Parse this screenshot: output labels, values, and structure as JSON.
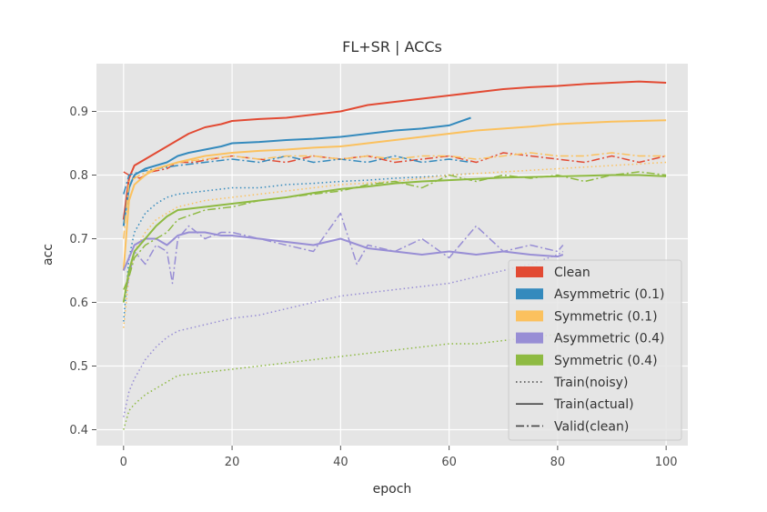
{
  "chart_data": {
    "type": "line",
    "title": "FL+SR | ACCs",
    "xlabel": "epoch",
    "ylabel": "acc",
    "xlim": [
      -5,
      104
    ],
    "ylim": [
      0.375,
      0.975
    ],
    "xticks": [
      0,
      20,
      40,
      60,
      80,
      100
    ],
    "yticks": [
      0.4,
      0.5,
      0.6,
      0.7,
      0.8,
      0.9
    ],
    "grid": true,
    "legend_position": "lower-right",
    "legend": [
      {
        "label": "Clean",
        "kind": "patch",
        "color": "#E24A33"
      },
      {
        "label": "Asymmetric (0.1)",
        "kind": "patch",
        "color": "#348ABD"
      },
      {
        "label": "Symmetric (0.1)",
        "kind": "patch",
        "color": "#FBC15E"
      },
      {
        "label": "Asymmetric (0.4)",
        "kind": "patch",
        "color": "#988ED5"
      },
      {
        "label": "Symmetric (0.4)",
        "kind": "patch",
        "color": "#8EBA42"
      },
      {
        "label": "Train(noisy)",
        "kind": "line",
        "style": "dotted",
        "color": "#444444"
      },
      {
        "label": "Train(actual)",
        "kind": "line",
        "style": "solid",
        "color": "#444444"
      },
      {
        "label": "Valid(clean)",
        "kind": "line",
        "style": "dashdot",
        "color": "#444444"
      }
    ],
    "series": [
      {
        "name": "Clean",
        "style": "solid",
        "color": "#E24A33",
        "x": [
          0,
          1,
          2,
          4,
          6,
          8,
          10,
          12,
          15,
          18,
          20,
          25,
          30,
          35,
          40,
          45,
          50,
          55,
          60,
          65,
          70,
          75,
          80,
          85,
          90,
          95,
          100
        ],
        "y": [
          0.73,
          0.795,
          0.815,
          0.825,
          0.835,
          0.845,
          0.855,
          0.865,
          0.875,
          0.88,
          0.885,
          0.888,
          0.89,
          0.895,
          0.9,
          0.91,
          0.915,
          0.92,
          0.925,
          0.93,
          0.935,
          0.938,
          0.94,
          0.943,
          0.945,
          0.947,
          0.945
        ]
      },
      {
        "name": "Clean",
        "style": "dashdot",
        "color": "#E24A33",
        "x": [
          0,
          1,
          3,
          5,
          8,
          10,
          13,
          16,
          20,
          25,
          30,
          35,
          40,
          45,
          50,
          55,
          60,
          65,
          70,
          75,
          80,
          85,
          90,
          95,
          100
        ],
        "y": [
          0.805,
          0.8,
          0.795,
          0.805,
          0.81,
          0.82,
          0.82,
          0.825,
          0.83,
          0.825,
          0.82,
          0.83,
          0.825,
          0.83,
          0.82,
          0.825,
          0.83,
          0.82,
          0.835,
          0.83,
          0.825,
          0.82,
          0.83,
          0.82,
          0.83
        ]
      },
      {
        "name": "Asymmetric (0.1)",
        "style": "solid",
        "color": "#348ABD",
        "x": [
          0,
          1,
          2,
          4,
          6,
          8,
          10,
          12,
          15,
          18,
          20,
          25,
          30,
          35,
          40,
          45,
          50,
          55,
          60,
          64
        ],
        "y": [
          0.72,
          0.78,
          0.8,
          0.81,
          0.815,
          0.82,
          0.83,
          0.835,
          0.84,
          0.845,
          0.85,
          0.852,
          0.855,
          0.857,
          0.86,
          0.865,
          0.87,
          0.873,
          0.878,
          0.89
        ]
      },
      {
        "name": "Asymmetric (0.1)",
        "style": "dashdot",
        "color": "#348ABD",
        "x": [
          0,
          1,
          3,
          6,
          10,
          15,
          20,
          25,
          30,
          35,
          40,
          45,
          50,
          55,
          60,
          64
        ],
        "y": [
          0.77,
          0.8,
          0.805,
          0.81,
          0.815,
          0.82,
          0.825,
          0.82,
          0.83,
          0.82,
          0.825,
          0.82,
          0.83,
          0.82,
          0.825,
          0.82
        ]
      },
      {
        "name": "Asymmetric (0.1)",
        "style": "dotted",
        "color": "#348ABD",
        "x": [
          0,
          1,
          2,
          4,
          6,
          8,
          10,
          15,
          20,
          25,
          30,
          35,
          40,
          45,
          50,
          55,
          60,
          64
        ],
        "y": [
          0.57,
          0.67,
          0.71,
          0.74,
          0.755,
          0.765,
          0.77,
          0.775,
          0.78,
          0.78,
          0.785,
          0.787,
          0.79,
          0.792,
          0.795,
          0.797,
          0.8,
          0.802
        ]
      },
      {
        "name": "Symmetric (0.1)",
        "style": "solid",
        "color": "#FBC15E",
        "x": [
          0,
          1,
          2,
          4,
          6,
          8,
          10,
          15,
          20,
          25,
          30,
          35,
          40,
          45,
          50,
          55,
          60,
          65,
          70,
          75,
          80,
          85,
          90,
          95,
          100
        ],
        "y": [
          0.65,
          0.76,
          0.785,
          0.8,
          0.81,
          0.815,
          0.82,
          0.83,
          0.835,
          0.838,
          0.84,
          0.843,
          0.845,
          0.85,
          0.855,
          0.86,
          0.865,
          0.87,
          0.873,
          0.876,
          0.88,
          0.882,
          0.884,
          0.885,
          0.886
        ]
      },
      {
        "name": "Symmetric (0.1)",
        "style": "dashdot",
        "color": "#FBC15E",
        "x": [
          0,
          1,
          3,
          6,
          10,
          15,
          20,
          25,
          30,
          35,
          40,
          45,
          50,
          55,
          60,
          65,
          70,
          75,
          80,
          85,
          90,
          95,
          100
        ],
        "y": [
          0.7,
          0.79,
          0.8,
          0.81,
          0.82,
          0.825,
          0.83,
          0.825,
          0.83,
          0.83,
          0.825,
          0.83,
          0.825,
          0.83,
          0.83,
          0.825,
          0.83,
          0.835,
          0.83,
          0.83,
          0.835,
          0.83,
          0.83
        ]
      },
      {
        "name": "Symmetric (0.1)",
        "style": "dotted",
        "color": "#FBC15E",
        "x": [
          0,
          1,
          2,
          4,
          6,
          8,
          10,
          15,
          20,
          25,
          30,
          40,
          50,
          60,
          70,
          80,
          90,
          100
        ],
        "y": [
          0.56,
          0.64,
          0.68,
          0.71,
          0.73,
          0.74,
          0.75,
          0.76,
          0.765,
          0.77,
          0.775,
          0.785,
          0.79,
          0.8,
          0.805,
          0.81,
          0.815,
          0.82
        ]
      },
      {
        "name": "Asymmetric (0.4)",
        "style": "solid",
        "color": "#988ED5",
        "x": [
          0,
          1,
          2,
          4,
          6,
          8,
          10,
          12,
          15,
          18,
          20,
          25,
          30,
          35,
          40,
          45,
          50,
          55,
          60,
          65,
          70,
          75,
          80,
          81
        ],
        "y": [
          0.65,
          0.67,
          0.69,
          0.7,
          0.7,
          0.69,
          0.705,
          0.71,
          0.71,
          0.705,
          0.705,
          0.7,
          0.695,
          0.69,
          0.7,
          0.685,
          0.68,
          0.675,
          0.68,
          0.675,
          0.68,
          0.675,
          0.672,
          0.675
        ]
      },
      {
        "name": "Asymmetric (0.4)",
        "style": "dashdot",
        "color": "#988ED5",
        "x": [
          0,
          1,
          2,
          4,
          6,
          8,
          9,
          10,
          12,
          15,
          18,
          20,
          25,
          30,
          35,
          40,
          43,
          45,
          50,
          55,
          60,
          65,
          70,
          75,
          80,
          81
        ],
        "y": [
          0.6,
          0.64,
          0.68,
          0.66,
          0.69,
          0.68,
          0.63,
          0.7,
          0.72,
          0.7,
          0.71,
          0.71,
          0.7,
          0.69,
          0.68,
          0.74,
          0.66,
          0.69,
          0.68,
          0.7,
          0.67,
          0.72,
          0.68,
          0.69,
          0.68,
          0.69
        ]
      },
      {
        "name": "Asymmetric (0.4)",
        "style": "dotted",
        "color": "#988ED5",
        "x": [
          0,
          1,
          2,
          4,
          6,
          8,
          10,
          15,
          20,
          25,
          30,
          35,
          40,
          45,
          50,
          55,
          60,
          65,
          70,
          75,
          80,
          81
        ],
        "y": [
          0.42,
          0.46,
          0.48,
          0.51,
          0.53,
          0.545,
          0.555,
          0.565,
          0.575,
          0.58,
          0.59,
          0.6,
          0.61,
          0.615,
          0.62,
          0.625,
          0.63,
          0.64,
          0.65,
          0.66,
          0.675,
          0.68
        ]
      },
      {
        "name": "Symmetric (0.4)",
        "style": "solid",
        "color": "#8EBA42",
        "x": [
          0,
          1,
          2,
          4,
          6,
          8,
          10,
          15,
          20,
          25,
          30,
          35,
          40,
          45,
          50,
          55,
          60,
          65,
          70,
          75,
          80,
          85,
          90,
          95,
          100
        ],
        "y": [
          0.6,
          0.65,
          0.68,
          0.7,
          0.72,
          0.735,
          0.745,
          0.75,
          0.755,
          0.76,
          0.765,
          0.772,
          0.778,
          0.782,
          0.787,
          0.79,
          0.792,
          0.794,
          0.796,
          0.797,
          0.798,
          0.799,
          0.8,
          0.8,
          0.798
        ]
      },
      {
        "name": "Symmetric (0.4)",
        "style": "dashdot",
        "color": "#8EBA42",
        "x": [
          0,
          1,
          2,
          4,
          6,
          8,
          10,
          15,
          20,
          25,
          30,
          35,
          40,
          45,
          50,
          55,
          60,
          65,
          70,
          75,
          80,
          85,
          90,
          95,
          100
        ],
        "y": [
          0.62,
          0.64,
          0.67,
          0.69,
          0.7,
          0.71,
          0.73,
          0.745,
          0.75,
          0.76,
          0.765,
          0.77,
          0.775,
          0.785,
          0.79,
          0.78,
          0.8,
          0.79,
          0.8,
          0.795,
          0.8,
          0.79,
          0.8,
          0.805,
          0.8
        ]
      },
      {
        "name": "Symmetric (0.4)",
        "style": "dotted",
        "color": "#8EBA42",
        "x": [
          0,
          1,
          2,
          4,
          6,
          8,
          10,
          15,
          20,
          25,
          30,
          35,
          40,
          45,
          50,
          55,
          60,
          65,
          70,
          75,
          80
        ],
        "y": [
          0.4,
          0.43,
          0.44,
          0.455,
          0.465,
          0.475,
          0.485,
          0.49,
          0.495,
          0.5,
          0.505,
          0.51,
          0.515,
          0.52,
          0.525,
          0.53,
          0.535,
          0.535,
          0.54,
          0.545,
          0.55
        ]
      }
    ]
  }
}
